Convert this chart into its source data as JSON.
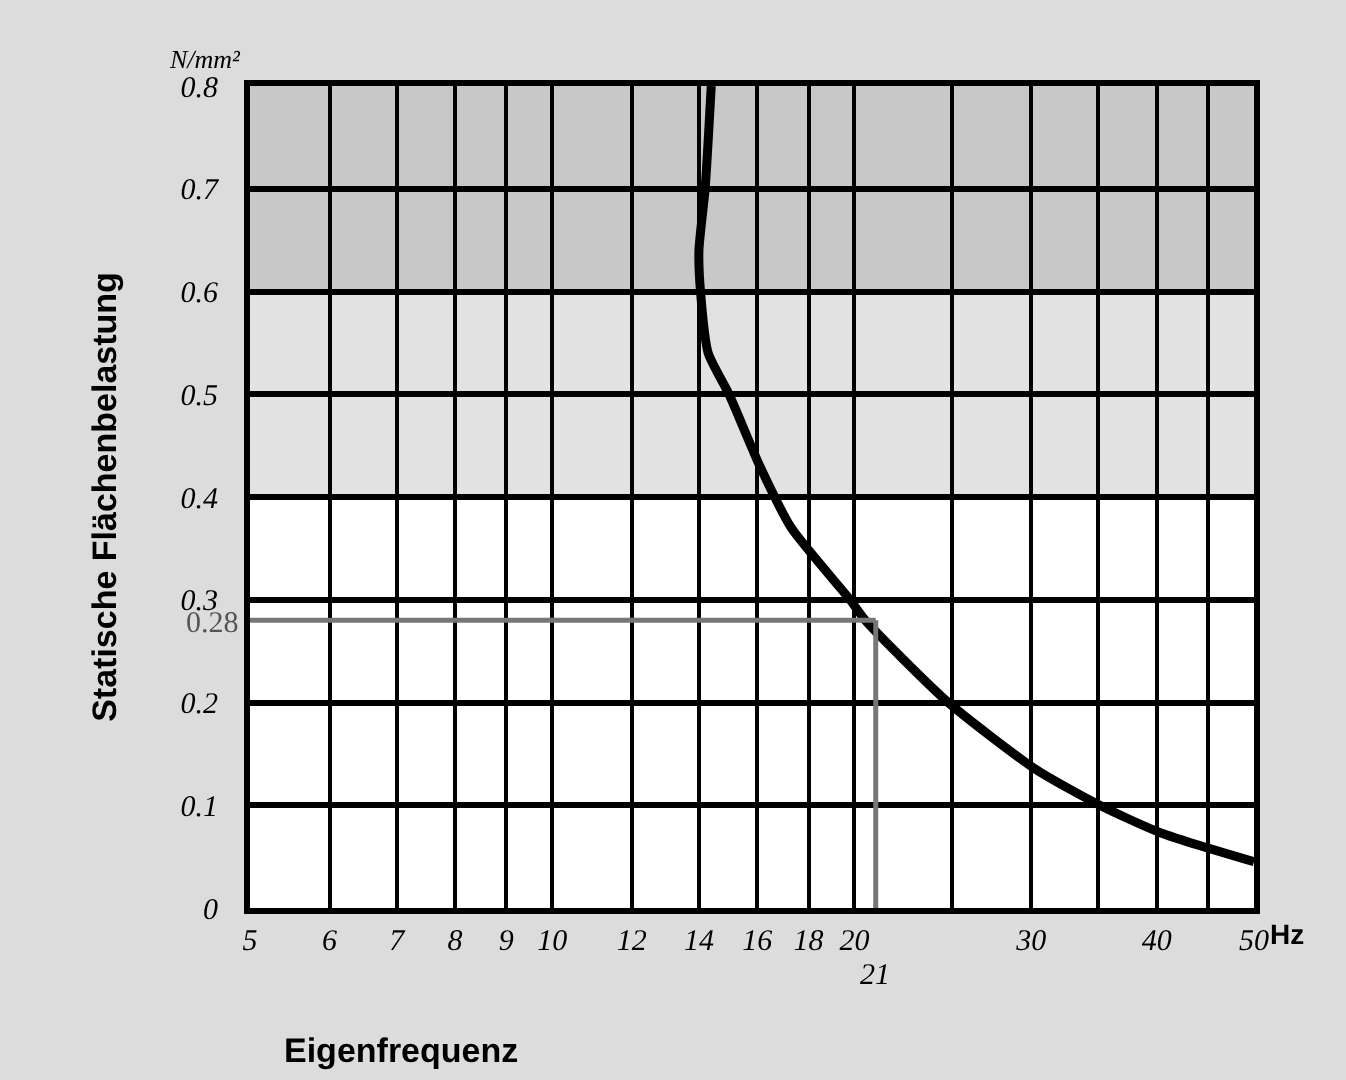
{
  "chart_data": {
    "type": "line",
    "xlabel": "Eigenfrequenz",
    "ylabel": "Statische Flächenbelastung",
    "annotations": [
      "N/mm²",
      "Hz"
    ],
    "log": "x",
    "grid": true,
    "marker": "none",
    "line_style": "solid",
    "xlim": [
      5,
      50
    ],
    "xticks": [
      5,
      6,
      7,
      8,
      9,
      10,
      12,
      14,
      16,
      18,
      20,
      {
        "value": 25,
        "label": null
      },
      30,
      {
        "value": 35,
        "label": null
      },
      40,
      {
        "value": 45,
        "label": null
      },
      50
    ],
    "ylim": [
      0,
      0.8
    ],
    "yticks": [
      {
        "value": 0,
        "label": "0"
      },
      0.1,
      0.2,
      0.3,
      0.4,
      0.5,
      0.6,
      0.7,
      0.8
    ],
    "series": [
      {
        "color": "#000000",
        "x": [
          14.4,
          14.2,
          14,
          14.05,
          14.3,
          15,
          16.1,
          17.3,
          19.8,
          20.5,
          24.8,
          30.3,
          35.1,
          40.4,
          50
        ],
        "values": [
          0.8,
          0.7,
          0.64,
          0.6,
          0.54,
          0.5,
          0.43,
          0.37,
          0.3,
          0.28,
          0.2,
          0.135,
          0.1,
          0.073,
          0.045
        ]
      }
    ],
    "bands": [
      {
        "axis": "y",
        "from": 0.6,
        "to": 0.8,
        "color": "#c8c8c8"
      },
      {
        "axis": "y",
        "from": 0.4,
        "to": 0.6,
        "color": "#e2e2e2"
      }
    ],
    "ref_lines": [
      {
        "axis": "y",
        "value": 0.28,
        "label": "0.28",
        "color": "#777777"
      },
      {
        "axis": "x",
        "value": 21,
        "label": "21",
        "color": "#777777"
      }
    ]
  }
}
